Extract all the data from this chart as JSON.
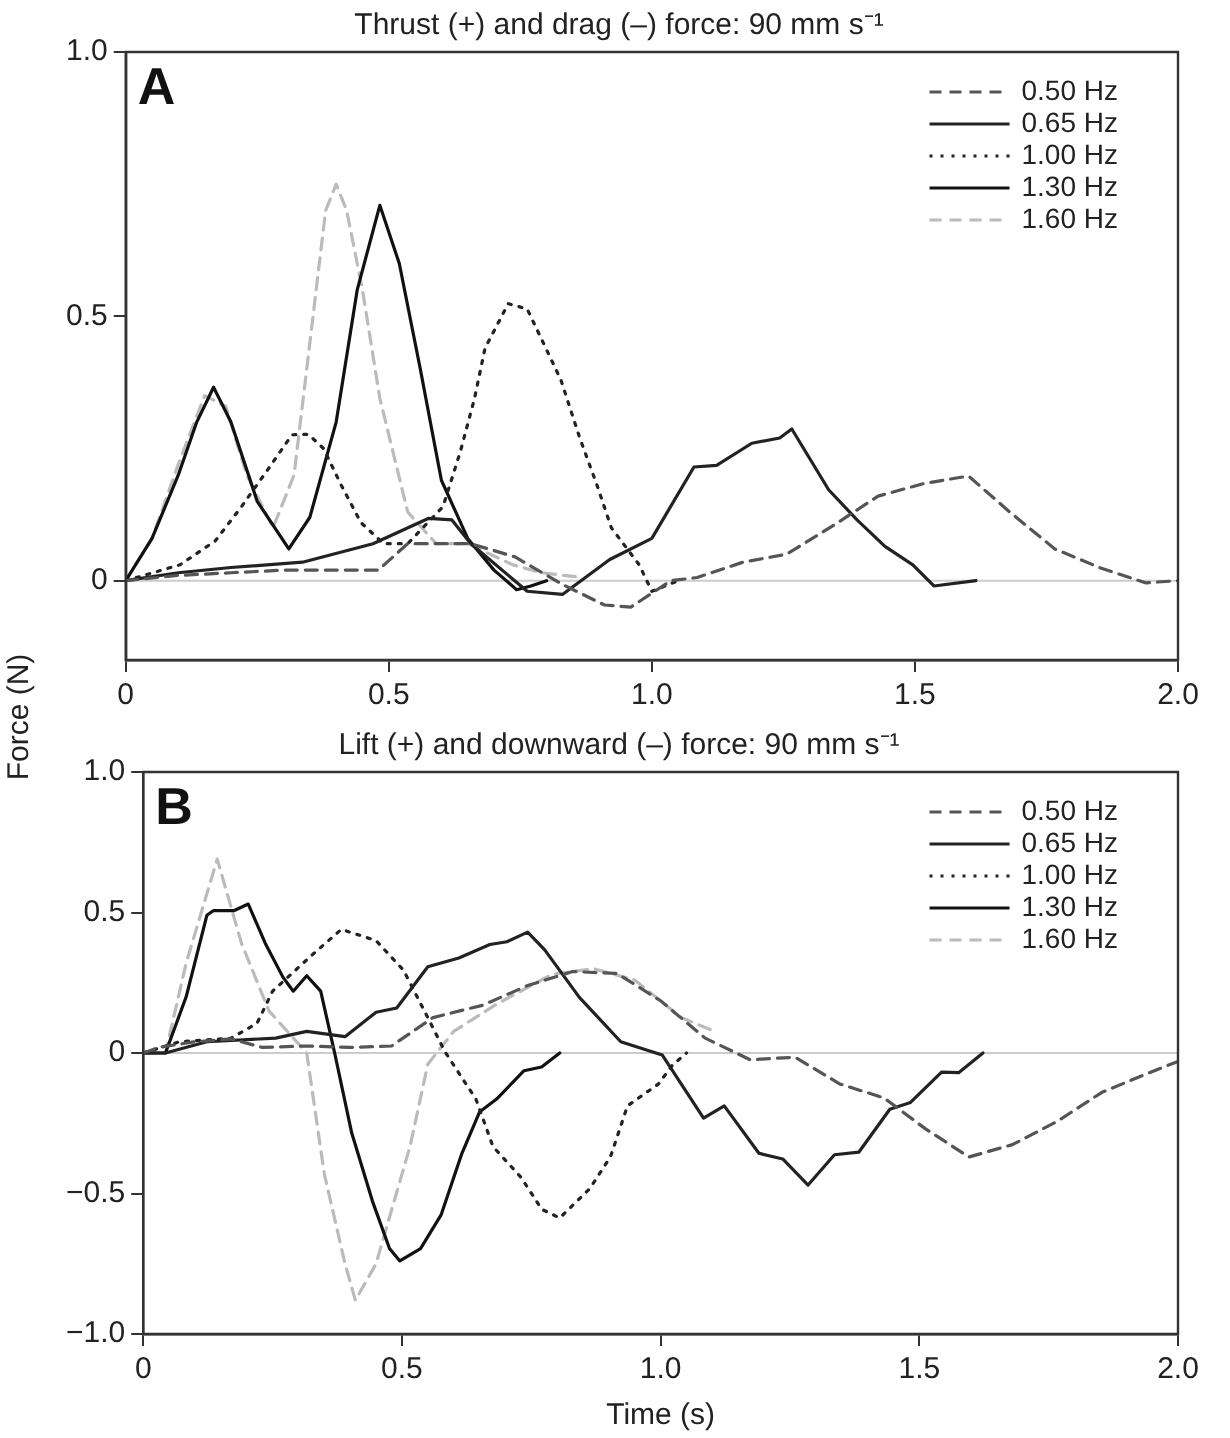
{
  "chart_data": [
    {
      "type": "line",
      "title": "Thrust (+) and drag (–) force: 90 mm s⁻¹",
      "ylabel": "Force (N)",
      "annotations": [
        "A"
      ],
      "xlim": [
        0,
        2
      ],
      "xticks": [
        0,
        {
          "value": 0.5,
          "label": "0.5"
        },
        {
          "value": 1,
          "label": "1.0"
        },
        {
          "value": 1.5,
          "label": "1.5"
        },
        {
          "value": 2,
          "label": "2.0"
        }
      ],
      "ylim": [
        -0.15,
        1
      ],
      "yticks": [
        0,
        {
          "value": 0.5,
          "label": "0.5"
        },
        {
          "value": 1,
          "label": "1.0"
        }
      ],
      "ref_lines": [
        {
          "axis": "y",
          "value": 0,
          "color": "#cccccc"
        }
      ],
      "legend": "top right",
      "grid": false,
      "marker": "none",
      "series": [
        {
          "name": "0.50 Hz",
          "color": "#555555",
          "line_style": "dashed",
          "x": [
            0,
            0.1,
            0.2,
            0.3,
            0.4,
            0.48,
            0.536,
            0.6,
            0.656,
            0.74,
            0.83,
            0.91,
            0.96,
            1.036,
            1.086,
            1.173,
            1.256,
            1.346,
            1.43,
            1.518,
            1.602,
            1.68,
            1.766,
            1.853,
            1.938,
            2.0
          ],
          "values": [
            0,
            0.01,
            0.015,
            0.02,
            0.02,
            0.02,
            0.07,
            0.07,
            0.07,
            0.045,
            -0.007,
            -0.046,
            -0.05,
            0,
            0.006,
            0.035,
            0.05,
            0.105,
            0.16,
            0.184,
            0.198,
            0.13,
            0.06,
            0.024,
            -0.004,
            0
          ]
        },
        {
          "name": "0.65 Hz",
          "color": "#222222",
          "line_style": "solid",
          "x": [
            0,
            0.1,
            0.2,
            0.336,
            0.47,
            0.576,
            0.62,
            0.656,
            0.763,
            0.83,
            0.92,
            1.0,
            1.08,
            1.123,
            1.19,
            1.243,
            1.266,
            1.336,
            1.39,
            1.443,
            1.496,
            1.536,
            1.616
          ],
          "values": [
            0,
            0.015,
            0.025,
            0.035,
            0.07,
            0.118,
            0.115,
            0.07,
            -0.02,
            -0.026,
            0.04,
            0.08,
            0.215,
            0.218,
            0.26,
            0.27,
            0.287,
            0.172,
            0.115,
            0.065,
            0.03,
            -0.01,
            0
          ]
        },
        {
          "name": "1.00 Hz",
          "color": "#222222",
          "line_style": "dotted",
          "x": [
            0,
            0.103,
            0.17,
            0.22,
            0.27,
            0.316,
            0.347,
            0.376,
            0.41,
            0.447,
            0.49,
            0.536,
            0.603,
            0.636,
            0.663,
            0.683,
            0.727,
            0.763,
            0.796,
            0.827,
            0.863,
            0.896,
            0.923,
            0.976,
            1.0,
            1.05
          ],
          "values": [
            0,
            0.03,
            0.075,
            0.14,
            0.21,
            0.276,
            0.277,
            0.25,
            0.18,
            0.11,
            0.07,
            0.07,
            0.14,
            0.244,
            0.345,
            0.44,
            0.524,
            0.514,
            0.445,
            0.38,
            0.27,
            0.18,
            0.1,
            0.03,
            -0.02,
            0
          ]
        },
        {
          "name": "1.30 Hz",
          "color": "#111111",
          "line_style": "solid",
          "x": [
            0,
            0.05,
            0.1,
            0.135,
            0.167,
            0.2,
            0.25,
            0.31,
            0.35,
            0.4,
            0.44,
            0.483,
            0.52,
            0.56,
            0.6,
            0.65,
            0.7,
            0.743,
            0.77,
            0.8
          ],
          "values": [
            0,
            0.08,
            0.2,
            0.3,
            0.366,
            0.3,
            0.15,
            0.06,
            0.12,
            0.3,
            0.55,
            0.71,
            0.6,
            0.4,
            0.19,
            0.08,
            0.02,
            -0.017,
            -0.01,
            0
          ]
        },
        {
          "name": "1.60 Hz",
          "color": "#bbbbbb",
          "line_style": "dashed",
          "x": [
            0,
            0.05,
            0.1,
            0.15,
            0.19,
            0.23,
            0.28,
            0.32,
            0.35,
            0.38,
            0.4,
            0.42,
            0.45,
            0.483,
            0.536,
            0.59,
            0.65,
            0.736,
            0.79,
            0.86
          ],
          "values": [
            0,
            0.08,
            0.22,
            0.35,
            0.33,
            0.2,
            0.1,
            0.2,
            0.45,
            0.7,
            0.75,
            0.7,
            0.55,
            0.345,
            0.13,
            0.07,
            0.07,
            0.03,
            0.015,
            0.007
          ]
        }
      ]
    },
    {
      "type": "line",
      "title": "Lift (+) and downward (–) force: 90 mm s⁻¹",
      "xlabel": "Time (s)",
      "annotations": [
        "B"
      ],
      "xlim": [
        0,
        2
      ],
      "xticks": [
        0,
        {
          "value": 0.5,
          "label": "0.5"
        },
        {
          "value": 1,
          "label": "1.0"
        },
        {
          "value": 1.5,
          "label": "1.5"
        },
        {
          "value": 2,
          "label": "2.0"
        }
      ],
      "ylim": [
        -1,
        1
      ],
      "yticks": [
        {
          "value": -1,
          "label": "−1.0"
        },
        {
          "value": -0.5,
          "label": "−0.5"
        },
        0,
        {
          "value": 0.5,
          "label": "0.5"
        },
        {
          "value": 1,
          "label": "1.0"
        }
      ],
      "ref_lines": [
        {
          "axis": "y",
          "value": 0,
          "color": "#cccccc"
        }
      ],
      "legend": "top right",
      "grid": false,
      "marker": "none",
      "series": [
        {
          "name": "0.50 Hz",
          "color": "#555555",
          "line_style": "dashed",
          "x": [
            0,
            0.03,
            0.1,
            0.17,
            0.23,
            0.32,
            0.4,
            0.48,
            0.56,
            0.656,
            0.743,
            0.83,
            0.916,
            1.0,
            1.086,
            1.173,
            1.26,
            1.346,
            1.432,
            1.512,
            1.596,
            1.68,
            1.766,
            1.853,
            1.938,
            2.0
          ],
          "values": [
            0,
            0.02,
            0.04,
            0.05,
            0.02,
            0.025,
            0.02,
            0.025,
            0.126,
            0.17,
            0.24,
            0.29,
            0.283,
            0.186,
            0.053,
            -0.024,
            -0.015,
            -0.11,
            -0.16,
            -0.27,
            -0.37,
            -0.326,
            -0.244,
            -0.14,
            -0.075,
            -0.03
          ]
        },
        {
          "name": "0.65 Hz",
          "color": "#222222",
          "line_style": "solid",
          "x": [
            0,
            0.043,
            0.123,
            0.256,
            0.316,
            0.39,
            0.45,
            0.49,
            0.55,
            0.61,
            0.67,
            0.703,
            0.743,
            0.776,
            0.843,
            0.923,
            1.003,
            1.016,
            1.083,
            1.123,
            1.19,
            1.236,
            1.285,
            1.336,
            1.383,
            1.443,
            1.483,
            1.543,
            1.576,
            1.623
          ],
          "values": [
            0,
            0,
            0.04,
            0.053,
            0.077,
            0.058,
            0.145,
            0.16,
            0.307,
            0.338,
            0.386,
            0.396,
            0.43,
            0.367,
            0.198,
            0.04,
            -0.007,
            -0.043,
            -0.232,
            -0.188,
            -0.357,
            -0.377,
            -0.47,
            -0.362,
            -0.353,
            -0.2,
            -0.176,
            -0.068,
            -0.07,
            0
          ]
        },
        {
          "name": "1.00 Hz",
          "color": "#222222",
          "line_style": "dotted",
          "x": [
            0,
            0.07,
            0.17,
            0.22,
            0.25,
            0.33,
            0.383,
            0.45,
            0.503,
            0.55,
            0.583,
            0.643,
            0.676,
            0.73,
            0.77,
            0.805,
            0.863,
            0.903,
            0.936,
            0.996,
            1.023,
            1.05
          ],
          "values": [
            0,
            0.04,
            0.053,
            0.106,
            0.22,
            0.355,
            0.44,
            0.4,
            0.295,
            0.126,
            0.005,
            -0.164,
            -0.333,
            -0.442,
            -0.556,
            -0.587,
            -0.483,
            -0.37,
            -0.188,
            -0.11,
            -0.043,
            0
          ]
        },
        {
          "name": "1.30 Hz",
          "color": "#111111",
          "line_style": "solid",
          "x": [
            0,
            0.043,
            0.083,
            0.123,
            0.136,
            0.176,
            0.203,
            0.236,
            0.27,
            0.29,
            0.316,
            0.343,
            0.37,
            0.403,
            0.443,
            0.476,
            0.496,
            0.536,
            0.576,
            0.616,
            0.65,
            0.683,
            0.736,
            0.77,
            0.805
          ],
          "values": [
            0,
            0,
            0.2,
            0.49,
            0.507,
            0.507,
            0.53,
            0.39,
            0.27,
            0.22,
            0.275,
            0.22,
            0,
            -0.285,
            -0.527,
            -0.696,
            -0.74,
            -0.696,
            -0.575,
            -0.357,
            -0.21,
            -0.164,
            -0.063,
            -0.05,
            0
          ]
        },
        {
          "name": "1.60 Hz",
          "color": "#bbbbbb",
          "line_style": "dashed",
          "x": [
            0,
            0.043,
            0.083,
            0.143,
            0.19,
            0.243,
            0.316,
            0.35,
            0.39,
            0.41,
            0.45,
            0.516,
            0.55,
            0.6,
            0.683,
            0.79,
            0.87,
            0.95,
            1.04,
            1.1
          ],
          "values": [
            0,
            0,
            0.32,
            0.69,
            0.39,
            0.15,
            0,
            -0.43,
            -0.75,
            -0.88,
            -0.75,
            -0.33,
            -0.04,
            0.077,
            0.174,
            0.28,
            0.3,
            0.26,
            0.126,
            0.08
          ]
        }
      ]
    }
  ]
}
